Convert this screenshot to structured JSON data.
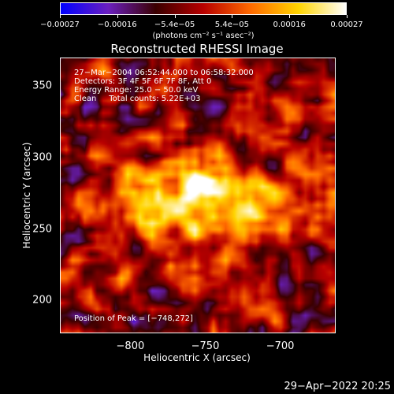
{
  "chart_data": {
    "type": "heatmap",
    "title": "Reconstructed RHESSI Image",
    "xlabel": "Heliocentric X (arcsec)",
    "ylabel": "Heliocentric Y (arcsec)",
    "xlim": [
      -847,
      -663
    ],
    "ylim": [
      177,
      370
    ],
    "x_ticks": [
      "−800",
      "−750",
      "−700"
    ],
    "x_tick_values": [
      -800,
      -750,
      -700
    ],
    "y_ticks": [
      "200",
      "250",
      "300",
      "350"
    ],
    "y_tick_values": [
      200,
      250,
      300,
      350
    ],
    "colorbar": {
      "ticks": [
        "−0.00027",
        "−0.00016",
        "−5.4e−05",
        "5.4e−05",
        "0.00016",
        "0.00027"
      ],
      "range": [
        -0.00027,
        0.00027
      ],
      "unit_label": "(photons cm⁻² s⁻¹ asec⁻²)",
      "colors": [
        "#0000ff",
        "#6a1fbf",
        "#3a0000",
        "#b80000",
        "#ff6a00",
        "#ffd400",
        "#ffffff"
      ]
    },
    "annotations": {
      "time_range": "27−Mar−2004 06:52:44.000 to 06:58:32.000",
      "detectors": "Detectors: 3F 4F 5F 6F 7F 8F, Att 0",
      "energy_range": "Energy Range: 25.0 − 50.0 keV",
      "method_counts": "Clean     Total counts: 5.22E+03",
      "peak": "Position of Peak = [−748,272]"
    },
    "peak_position": [
      -748,
      272
    ]
  },
  "timestamp": "29−Apr−2022 20:25"
}
